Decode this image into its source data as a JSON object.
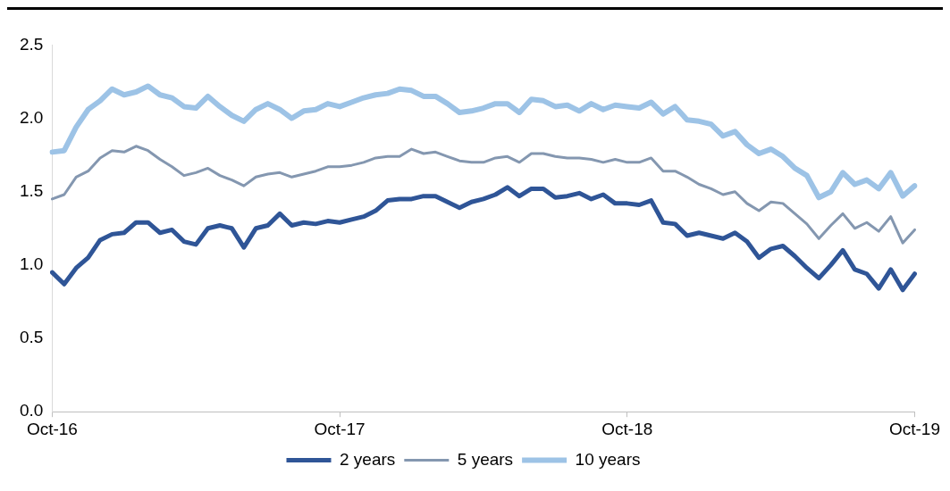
{
  "chart_data": {
    "type": "line",
    "categories": [
      "Oct-16",
      null,
      null,
      null,
      null,
      null,
      null,
      null,
      null,
      null,
      null,
      null,
      null,
      null,
      null,
      null,
      null,
      null,
      null,
      null,
      null,
      null,
      null,
      null,
      "Oct-17",
      null,
      null,
      null,
      null,
      null,
      null,
      null,
      null,
      null,
      null,
      null,
      null,
      null,
      null,
      null,
      null,
      null,
      null,
      null,
      null,
      null,
      null,
      null,
      "Oct-18",
      null,
      null,
      null,
      null,
      null,
      null,
      null,
      null,
      null,
      null,
      null,
      null,
      null,
      null,
      null,
      null,
      null,
      null,
      null,
      null,
      null,
      null,
      null,
      "Oct-19"
    ],
    "series": [
      {
        "name": "2 years",
        "color": "#2f5597",
        "values": [
          0.95,
          0.87,
          0.98,
          1.05,
          1.17,
          1.21,
          1.22,
          1.29,
          1.29,
          1.22,
          1.24,
          1.16,
          1.14,
          1.25,
          1.27,
          1.25,
          1.12,
          1.25,
          1.27,
          1.35,
          1.27,
          1.29,
          1.28,
          1.3,
          1.29,
          1.31,
          1.33,
          1.37,
          1.44,
          1.45,
          1.45,
          1.47,
          1.47,
          1.43,
          1.39,
          1.43,
          1.45,
          1.48,
          1.53,
          1.47,
          1.52,
          1.52,
          1.46,
          1.47,
          1.49,
          1.45,
          1.48,
          1.42,
          1.42,
          1.41,
          1.44,
          1.29,
          1.28,
          1.2,
          1.22,
          1.2,
          1.18,
          1.22,
          1.16,
          1.05,
          1.11,
          1.13,
          1.06,
          0.98,
          0.91,
          1.0,
          1.1,
          0.97,
          0.94,
          0.84,
          0.97,
          0.83,
          0.94
        ]
      },
      {
        "name": "5 years",
        "color": "#8497b0",
        "values": [
          1.45,
          1.48,
          1.6,
          1.64,
          1.73,
          1.78,
          1.77,
          1.81,
          1.78,
          1.72,
          1.67,
          1.61,
          1.63,
          1.66,
          1.61,
          1.58,
          1.54,
          1.6,
          1.62,
          1.63,
          1.6,
          1.62,
          1.64,
          1.67,
          1.67,
          1.68,
          1.7,
          1.73,
          1.74,
          1.74,
          1.79,
          1.76,
          1.77,
          1.74,
          1.71,
          1.7,
          1.7,
          1.73,
          1.74,
          1.7,
          1.76,
          1.76,
          1.74,
          1.73,
          1.73,
          1.72,
          1.7,
          1.72,
          1.7,
          1.7,
          1.73,
          1.64,
          1.64,
          1.6,
          1.55,
          1.52,
          1.48,
          1.5,
          1.42,
          1.37,
          1.43,
          1.42,
          1.35,
          1.28,
          1.18,
          1.27,
          1.35,
          1.25,
          1.29,
          1.23,
          1.33,
          1.15,
          1.24
        ]
      },
      {
        "name": "10 years",
        "color": "#9dc3e6",
        "values": [
          1.77,
          1.78,
          1.94,
          2.06,
          2.12,
          2.2,
          2.16,
          2.18,
          2.22,
          2.16,
          2.14,
          2.08,
          2.07,
          2.15,
          2.08,
          2.02,
          1.98,
          2.06,
          2.1,
          2.06,
          2.0,
          2.05,
          2.06,
          2.1,
          2.08,
          2.11,
          2.14,
          2.16,
          2.17,
          2.2,
          2.19,
          2.15,
          2.15,
          2.1,
          2.04,
          2.05,
          2.07,
          2.1,
          2.1,
          2.04,
          2.13,
          2.12,
          2.08,
          2.09,
          2.05,
          2.1,
          2.06,
          2.09,
          2.08,
          2.07,
          2.11,
          2.03,
          2.08,
          1.99,
          1.98,
          1.96,
          1.88,
          1.91,
          1.82,
          1.76,
          1.79,
          1.74,
          1.66,
          1.61,
          1.46,
          1.5,
          1.63,
          1.55,
          1.58,
          1.52,
          1.63,
          1.47,
          1.54
        ]
      }
    ],
    "ylim": [
      0,
      2.5
    ],
    "yticks": [
      {
        "value": 0,
        "label": "0.0"
      },
      {
        "value": 0.5,
        "label": "0.5"
      },
      {
        "value": 1,
        "label": "1.0"
      },
      {
        "value": 1.5,
        "label": "1.5"
      },
      {
        "value": 2,
        "label": "2.0"
      },
      {
        "value": 2.5,
        "label": "2.5"
      }
    ],
    "grid": false,
    "legend": "bottom",
    "marker": "none",
    "line_style": "solid"
  }
}
